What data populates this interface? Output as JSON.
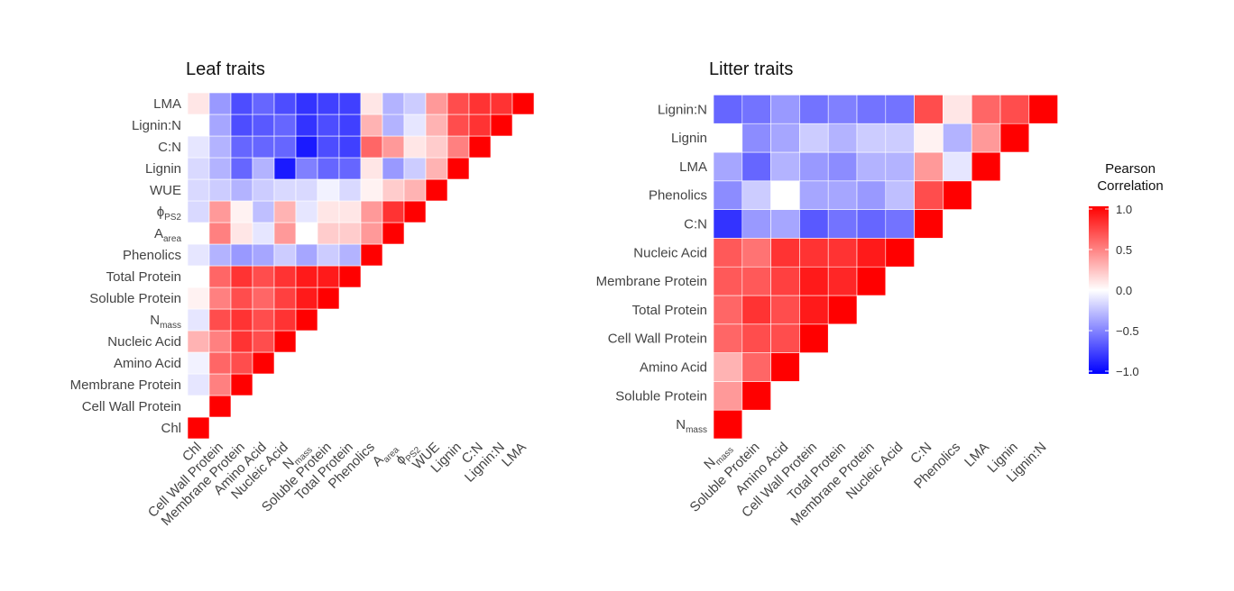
{
  "chart_data": [
    {
      "type": "heatmap",
      "title": "Leaf traits",
      "variables": [
        "Chl",
        "Cell Wall Protein",
        "Membrane Protein",
        "Amino Acid",
        "Nucleic Acid",
        "N|mass",
        "Soluble Protein",
        "Total Protein",
        "Phenolics",
        "A|area",
        "ϕ|PS2",
        "WUE",
        "Lignin",
        "C:N",
        "Lignin:N",
        "LMA"
      ],
      "values": [
        [
          1.0
        ],
        [
          0.0,
          1.0
        ],
        [
          -0.1,
          0.5,
          1.0
        ],
        [
          -0.05,
          0.6,
          0.7,
          1.0
        ],
        [
          0.3,
          0.5,
          0.8,
          0.7,
          1.0
        ],
        [
          -0.1,
          0.7,
          0.8,
          0.7,
          0.8,
          1.0
        ],
        [
          0.05,
          0.5,
          0.7,
          0.6,
          0.75,
          0.9,
          1.0
        ],
        [
          0.0,
          0.6,
          0.8,
          0.7,
          0.8,
          0.9,
          0.9,
          1.0
        ],
        [
          -0.1,
          -0.3,
          -0.4,
          -0.35,
          -0.2,
          -0.35,
          -0.2,
          -0.3,
          1.0
        ],
        [
          0.0,
          0.5,
          0.1,
          -0.1,
          0.4,
          0.0,
          0.2,
          0.2,
          0.4,
          1.0
        ],
        [
          -0.15,
          0.4,
          0.05,
          -0.25,
          0.3,
          -0.1,
          0.1,
          0.1,
          0.4,
          0.8,
          1.0
        ],
        [
          -0.15,
          -0.2,
          -0.3,
          -0.2,
          -0.15,
          -0.15,
          -0.05,
          -0.15,
          0.05,
          0.2,
          0.3,
          1.0
        ],
        [
          -0.15,
          -0.3,
          -0.6,
          -0.3,
          -0.9,
          -0.5,
          -0.6,
          -0.6,
          0.1,
          -0.4,
          -0.2,
          0.3,
          1.0
        ],
        [
          -0.1,
          -0.3,
          -0.6,
          -0.6,
          -0.6,
          -0.9,
          -0.7,
          -0.75,
          0.6,
          0.4,
          0.1,
          0.2,
          0.5,
          1.0
        ],
        [
          0.0,
          -0.35,
          -0.7,
          -0.65,
          -0.6,
          -0.8,
          -0.7,
          -0.75,
          0.3,
          -0.3,
          -0.1,
          0.3,
          0.7,
          0.8,
          1.0
        ],
        [
          0.1,
          -0.4,
          -0.7,
          -0.6,
          -0.7,
          -0.8,
          -0.75,
          -0.75,
          0.1,
          -0.3,
          -0.2,
          0.4,
          0.7,
          0.8,
          0.8,
          1.0
        ]
      ]
    },
    {
      "type": "heatmap",
      "title": "Litter traits",
      "variables": [
        "N|mass",
        "Soluble Protein",
        "Amino Acid",
        "Cell Wall Protein",
        "Total Protein",
        "Membrane Protein",
        "Nucleic Acid",
        "C:N",
        "Phenolics",
        "LMA",
        "Lignin",
        "Lignin:N"
      ],
      "values": [
        [
          1.0
        ],
        [
          0.4,
          1.0
        ],
        [
          0.3,
          0.6,
          1.0
        ],
        [
          0.6,
          0.7,
          0.7,
          1.0
        ],
        [
          0.6,
          0.8,
          0.7,
          0.9,
          1.0
        ],
        [
          0.65,
          0.65,
          0.75,
          0.9,
          0.85,
          1.0
        ],
        [
          0.65,
          0.55,
          0.8,
          0.8,
          0.8,
          0.9,
          1.0
        ],
        [
          -0.8,
          -0.4,
          -0.35,
          -0.65,
          -0.55,
          -0.6,
          -0.55,
          1.0
        ],
        [
          -0.45,
          -0.2,
          0.0,
          -0.35,
          -0.35,
          -0.4,
          -0.25,
          0.7,
          1.0
        ],
        [
          -0.35,
          -0.6,
          -0.3,
          -0.4,
          -0.45,
          -0.3,
          -0.3,
          0.4,
          -0.1,
          1.0
        ],
        [
          0.0,
          -0.45,
          -0.35,
          -0.2,
          -0.3,
          -0.2,
          -0.2,
          0.05,
          -0.3,
          0.4,
          1.0
        ],
        [
          -0.6,
          -0.55,
          -0.4,
          -0.55,
          -0.5,
          -0.55,
          -0.55,
          0.7,
          0.1,
          0.6,
          0.7,
          1.0
        ]
      ]
    }
  ],
  "legend": {
    "title_line1": "Pearson",
    "title_line2": "Correlation",
    "ticks": [
      "1.0",
      "0.5",
      "0.0",
      "−0.5",
      "−1.0"
    ],
    "colors": {
      "high": "#ff0000",
      "mid": "#ffffff",
      "low": "#0000ff"
    }
  }
}
